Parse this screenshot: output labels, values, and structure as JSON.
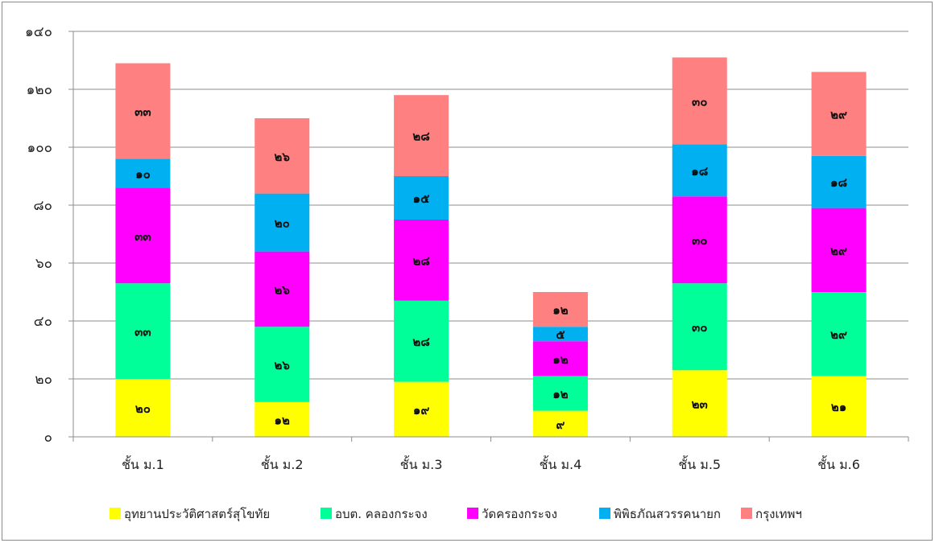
{
  "chart_data": {
    "type": "bar",
    "stacked": true,
    "title": "",
    "xlabel": "",
    "ylabel": "",
    "ylim": [
      0,
      140
    ],
    "y_ticks": [
      0,
      20,
      40,
      60,
      80,
      100,
      120,
      140
    ],
    "y_tick_labels": [
      "๐",
      "๒๐",
      "๔๐",
      "๖๐",
      "๘๐",
      "๑๐๐",
      "๑๒๐",
      "๑๔๐"
    ],
    "grid": true,
    "legend_position": "bottom",
    "categories": [
      "ชั้น ม.1",
      "ชั้น ม.2",
      "ชั้น ม.3",
      "ชั้น ม.4",
      "ชั้น ม.5",
      "ชั้น ม.6"
    ],
    "series": [
      {
        "name": "อุทยานประวัติศาสตร์สุโขทัย",
        "color": "#ffff00",
        "values": [
          20,
          12,
          19,
          9,
          23,
          21
        ],
        "labels": [
          "๒๐",
          "๑๒",
          "๑๙",
          "๙",
          "๒๓",
          "๒๑"
        ]
      },
      {
        "name": "อบต. คลองกระจง",
        "color": "#00ff99",
        "values": [
          33,
          26,
          28,
          12,
          30,
          29
        ],
        "labels": [
          "๓๓",
          "๒๖",
          "๒๘",
          "๑๒",
          "๓๐",
          "๒๙"
        ]
      },
      {
        "name": "วัดครองกระจง",
        "color": "#ff00ff",
        "values": [
          33,
          26,
          28,
          12,
          30,
          29
        ],
        "labels": [
          "๓๓",
          "๒๖",
          "๒๘",
          "๑๒",
          "๓๐",
          "๒๙"
        ]
      },
      {
        "name": "พิพิธภัณสวรรคนายก",
        "color": "#00b0f0",
        "values": [
          10,
          20,
          15,
          5,
          18,
          18
        ],
        "labels": [
          "๑๐",
          "๒๐",
          "๑๕",
          "๕",
          "๑๘",
          "๑๘"
        ]
      },
      {
        "name": "กรุงเทพฯ",
        "color": "#ff8080",
        "values": [
          33,
          26,
          28,
          12,
          30,
          29
        ],
        "labels": [
          "๓๓",
          "๒๖",
          "๒๘",
          "๑๒",
          "๓๐",
          "๒๙"
        ]
      }
    ]
  }
}
